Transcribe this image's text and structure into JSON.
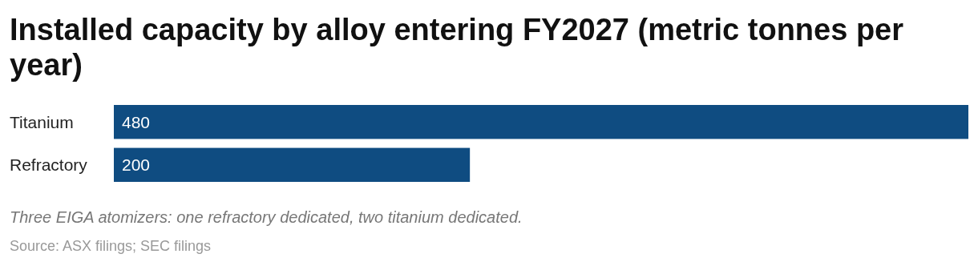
{
  "chart_data": {
    "type": "bar",
    "orientation": "horizontal",
    "title": "Installed capacity by alloy entering FY2027 (metric tonnes per year)",
    "categories": [
      "Titanium",
      "Refractory"
    ],
    "values": [
      480,
      200
    ],
    "color": "#0f4c81",
    "data_labels": true,
    "annotations": [
      "Three EIGA atomizers: one refractory dedicated, two titanium dedicated.",
      "Source: ASX filings; SEC filings"
    ]
  }
}
